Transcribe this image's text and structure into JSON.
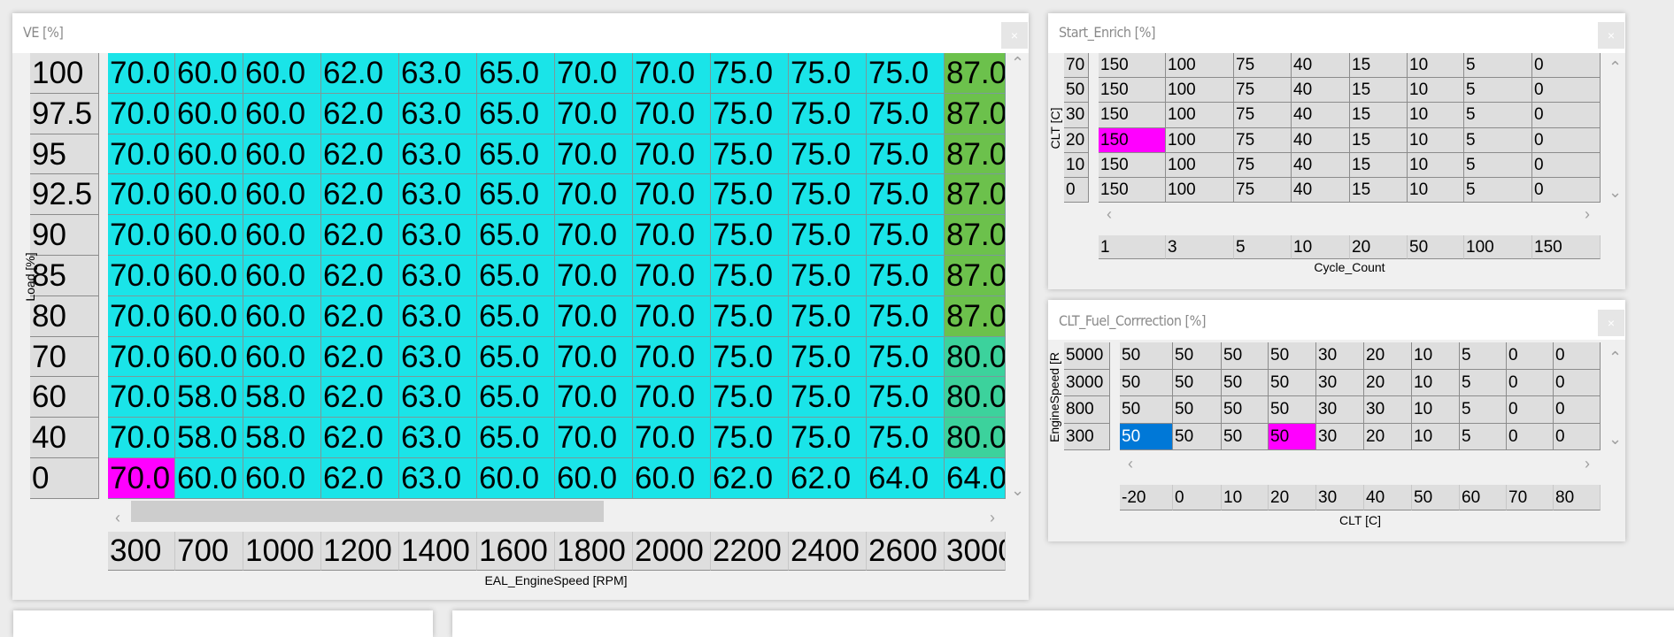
{
  "colors": {
    "cyan": "#1ae4e8",
    "green": "#6cc14c",
    "teal": "#3cd29c",
    "highlight": "#ff00ff",
    "selected": "#0078d7"
  },
  "ve": {
    "title": "VE [%]",
    "close": "×",
    "y_label": "Load [%]",
    "x_label": "EAL_EngineSpeed [RPM]",
    "y_axis": [
      "100",
      "97.5",
      "95",
      "92.5",
      "90",
      "85",
      "80",
      "70",
      "60",
      "40",
      "0"
    ],
    "x_axis": [
      "300",
      "700",
      "1000",
      "1200",
      "1400",
      "1600",
      "1800",
      "2000",
      "2200",
      "2400",
      "2600",
      "3000"
    ],
    "rows": [
      [
        "70.0",
        "60.0",
        "60.0",
        "62.0",
        "63.0",
        "65.0",
        "70.0",
        "70.0",
        "75.0",
        "75.0",
        "75.0",
        "87.0"
      ],
      [
        "70.0",
        "60.0",
        "60.0",
        "62.0",
        "63.0",
        "65.0",
        "70.0",
        "70.0",
        "75.0",
        "75.0",
        "75.0",
        "87.0"
      ],
      [
        "70.0",
        "60.0",
        "60.0",
        "62.0",
        "63.0",
        "65.0",
        "70.0",
        "70.0",
        "75.0",
        "75.0",
        "75.0",
        "87.0"
      ],
      [
        "70.0",
        "60.0",
        "60.0",
        "62.0",
        "63.0",
        "65.0",
        "70.0",
        "70.0",
        "75.0",
        "75.0",
        "75.0",
        "87.0"
      ],
      [
        "70.0",
        "60.0",
        "60.0",
        "62.0",
        "63.0",
        "65.0",
        "70.0",
        "70.0",
        "75.0",
        "75.0",
        "75.0",
        "87.0"
      ],
      [
        "70.0",
        "60.0",
        "60.0",
        "62.0",
        "63.0",
        "65.0",
        "70.0",
        "70.0",
        "75.0",
        "75.0",
        "75.0",
        "87.0"
      ],
      [
        "70.0",
        "60.0",
        "60.0",
        "62.0",
        "63.0",
        "65.0",
        "70.0",
        "70.0",
        "75.0",
        "75.0",
        "75.0",
        "87.0"
      ],
      [
        "70.0",
        "60.0",
        "60.0",
        "62.0",
        "63.0",
        "65.0",
        "70.0",
        "70.0",
        "75.0",
        "75.0",
        "75.0",
        "80.0"
      ],
      [
        "70.0",
        "58.0",
        "58.0",
        "62.0",
        "63.0",
        "65.0",
        "70.0",
        "70.0",
        "75.0",
        "75.0",
        "75.0",
        "80.0"
      ],
      [
        "70.0",
        "58.0",
        "58.0",
        "62.0",
        "63.0",
        "65.0",
        "70.0",
        "70.0",
        "75.0",
        "75.0",
        "75.0",
        "80.0"
      ],
      [
        "70.0",
        "60.0",
        "60.0",
        "62.0",
        "63.0",
        "60.0",
        "60.0",
        "60.0",
        "62.0",
        "62.0",
        "64.0",
        "64.0"
      ]
    ],
    "highlight": [
      [
        10,
        0
      ]
    ],
    "hscroll": {
      "position": 0.0,
      "visible_fraction": 0.55
    }
  },
  "start_enrich": {
    "title": "Start_Enrich [%]",
    "close": "×",
    "y_label": "CLT [C]",
    "x_label": "Cycle_Count",
    "y_axis": [
      "70",
      "50",
      "30",
      "20",
      "10",
      "0"
    ],
    "x_axis": [
      "1",
      "3",
      "5",
      "10",
      "20",
      "50",
      "100",
      "150"
    ],
    "rows": [
      [
        "150",
        "100",
        "75",
        "40",
        "15",
        "10",
        "5",
        "0"
      ],
      [
        "150",
        "100",
        "75",
        "40",
        "15",
        "10",
        "5",
        "0"
      ],
      [
        "150",
        "100",
        "75",
        "40",
        "15",
        "10",
        "5",
        "0"
      ],
      [
        "150",
        "100",
        "75",
        "40",
        "15",
        "10",
        "5",
        "0"
      ],
      [
        "150",
        "100",
        "75",
        "40",
        "15",
        "10",
        "5",
        "0"
      ],
      [
        "150",
        "100",
        "75",
        "40",
        "15",
        "10",
        "5",
        "0"
      ]
    ],
    "highlight": [
      [
        3,
        0
      ]
    ]
  },
  "clt_fuel": {
    "title": "CLT_Fuel_Corrrection [%]",
    "close": "×",
    "y_label": "EngineSpeed [R",
    "x_label": "CLT [C]",
    "y_axis": [
      "5000",
      "3000",
      "800",
      "300"
    ],
    "x_axis": [
      "-20",
      "0",
      "10",
      "20",
      "30",
      "40",
      "50",
      "60",
      "70",
      "80"
    ],
    "rows": [
      [
        "50",
        "50",
        "50",
        "50",
        "30",
        "20",
        "10",
        "5",
        "0",
        "0"
      ],
      [
        "50",
        "50",
        "50",
        "50",
        "30",
        "20",
        "10",
        "5",
        "0",
        "0"
      ],
      [
        "50",
        "50",
        "50",
        "50",
        "30",
        "30",
        "10",
        "5",
        "0",
        "0"
      ],
      [
        "50",
        "50",
        "50",
        "50",
        "30",
        "20",
        "10",
        "5",
        "0",
        "0"
      ]
    ],
    "highlight": [
      [
        3,
        3
      ]
    ],
    "selected": [
      [
        3,
        0
      ]
    ]
  }
}
